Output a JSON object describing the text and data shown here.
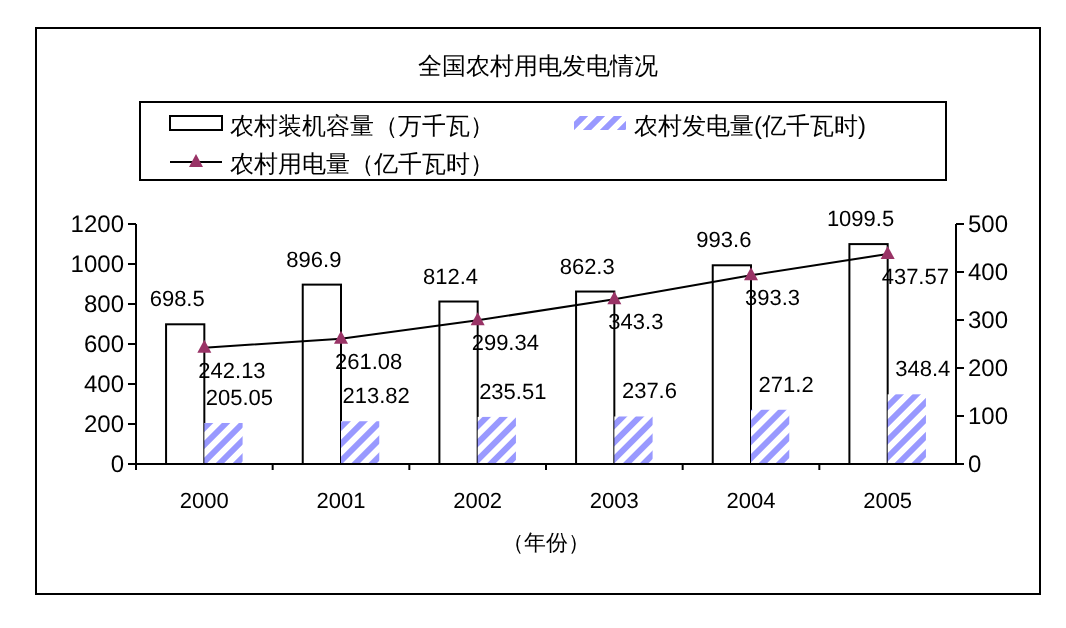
{
  "chart_data": {
    "type": "bar",
    "title": "全国农村用电发电情况",
    "xlabel": "（年份）",
    "categories": [
      "2000",
      "2001",
      "2002",
      "2003",
      "2004",
      "2005"
    ],
    "series": [
      {
        "name": "农村装机容量（万千瓦）",
        "color": "#ffffff",
        "values": [
          698.5,
          896.9,
          812.4,
          862.3,
          993.6,
          1099.5
        ]
      },
      {
        "name": "农村发电量(亿千瓦时)",
        "color": "#9999ff",
        "values": [
          205.05,
          213.82,
          235.51,
          237.6,
          271.2,
          348.4
        ]
      },
      {
        "name": "农村用电量（亿千瓦时）",
        "type": "line",
        "axis": "y2",
        "color": "#993366",
        "marker": "triangle",
        "values": [
          242.13,
          261.08,
          299.34,
          343.3,
          393.3,
          437.57
        ]
      }
    ],
    "ylim": [
      0,
      1200
    ],
    "yticks": [
      0,
      200,
      400,
      600,
      800,
      1000,
      1200
    ],
    "y2lim": [
      0,
      500
    ],
    "y2ticks": [
      0,
      100,
      200,
      300,
      400,
      500
    ],
    "data_labels": true,
    "legend": "top",
    "grid": false
  }
}
